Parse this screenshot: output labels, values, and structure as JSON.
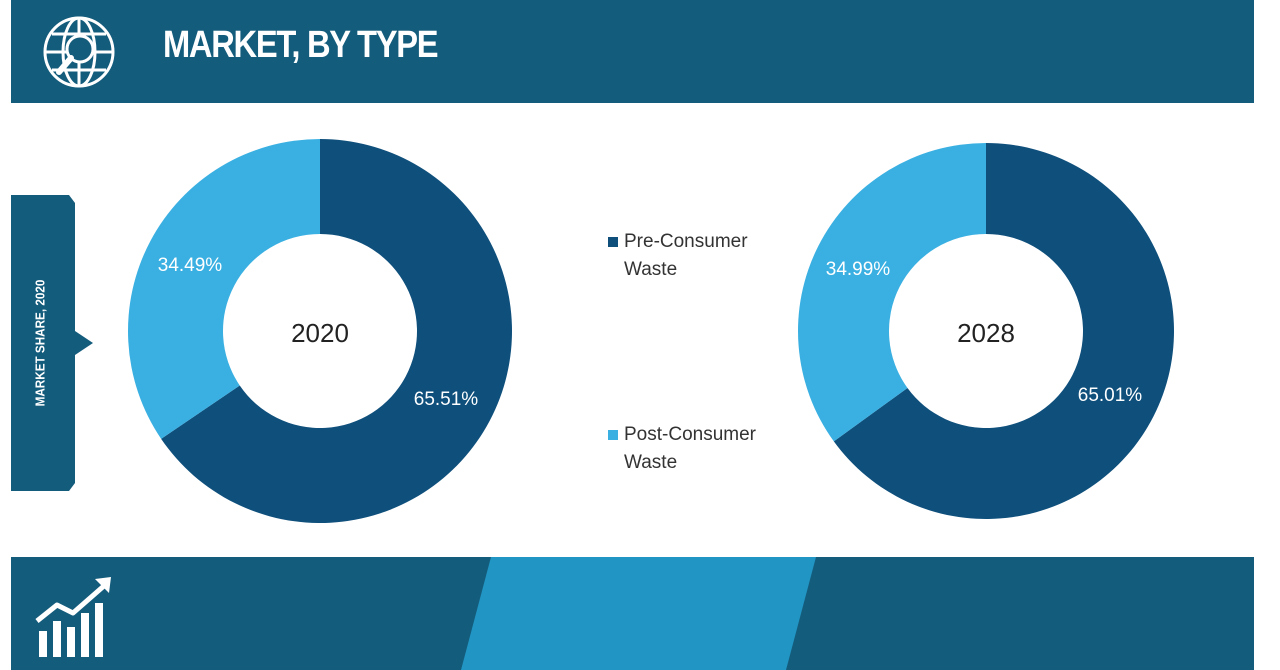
{
  "header": {
    "title": "MARKET, BY TYPE",
    "icon": "globe-search-icon"
  },
  "side_label": "MARKET SHARE, 2020",
  "colors": {
    "primary": "#145c7c",
    "dark_slice": "#0e4f7c",
    "light_slice": "#3ab0e2",
    "band": "#2195c4"
  },
  "legend": [
    {
      "label_line1": "Pre-Consumer",
      "label_line2": "Waste",
      "color": "#0e4f7c"
    },
    {
      "label_line1": "Post-Consumer",
      "label_line2": "Waste",
      "color": "#3ab0e2"
    }
  ],
  "chart_data": [
    {
      "type": "pie",
      "center_label": "2020",
      "categories": [
        "Pre-Consumer Waste",
        "Post-Consumer Waste"
      ],
      "values": [
        65.51,
        34.49
      ],
      "labels": [
        "65.51%",
        "34.49%"
      ]
    },
    {
      "type": "pie",
      "center_label": "2028",
      "categories": [
        "Pre-Consumer Waste",
        "Post-Consumer Waste"
      ],
      "values": [
        65.01,
        34.99
      ],
      "labels": [
        "65.01%",
        "34.99%"
      ]
    }
  ],
  "footer": {
    "icon": "growth-chart-icon"
  }
}
